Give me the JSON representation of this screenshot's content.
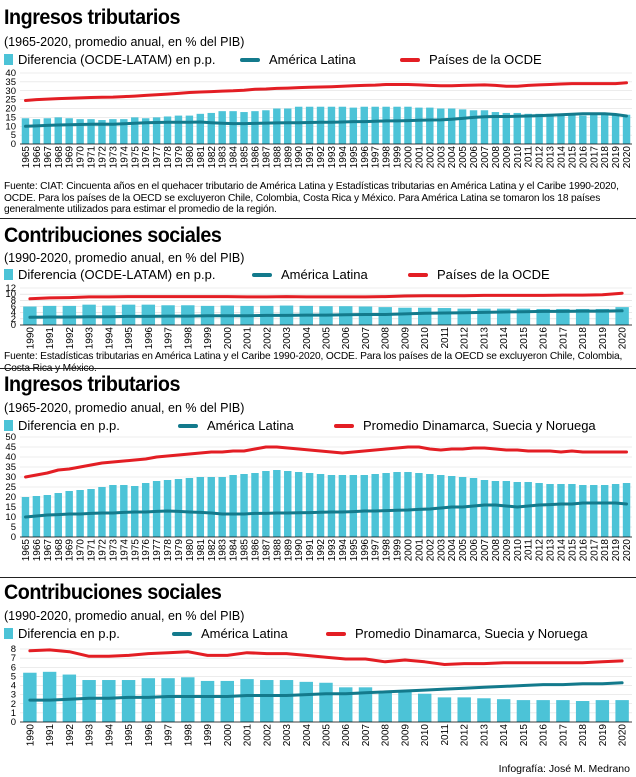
{
  "panels": [
    {
      "title": "Ingresos tributarios",
      "subtitle": "(1965-2020, promedio anual, en % del PIB)",
      "legend": [
        "Diferencia (OCDE-LATAM) en p.p.",
        "América Latina",
        "Países de la OCDE"
      ],
      "note": "Fuente: CIAT: Cincuenta años en el quehacer tributario de América Latina y Estadísticas tributarias en América Latina y el Caribe 1990-2020, OCDE. Para los países de la OECD se excluyeron Chile, Colombia, Costa Rica y México. Para América Latina se tomaron los 18 países generalmente utilizados para estimar el promedio de la región."
    },
    {
      "title": "Contribuciones sociales",
      "subtitle": "(1990-2020, promedio anual, en % del PIB)",
      "legend": [
        "Diferencia (OCDE-LATAM) en p.p.",
        "América Latina",
        "Países de la OCDE"
      ],
      "note": "Fuente: Estadísticas tributarias en América Latina y el Caribe 1990-2020, OCDE. Para los países de la OECD se excluyeron Chile, Colombia, Costa Rica y México."
    },
    {
      "title": "Ingresos tributarios",
      "subtitle": "(1965-2020, promedio anual, en % del PIB)",
      "legend": [
        "Diferencia en p.p.",
        "América Latina",
        "Promedio Dinamarca, Suecia y Noruega"
      ],
      "note": ""
    },
    {
      "title": "Contribuciones sociales",
      "subtitle": "(1990-2020, promedio anual, en % del PIB)",
      "legend": [
        "Diferencia en p.p.",
        "América Latina",
        "Promedio Dinamarca, Suecia y Noruega"
      ],
      "note": ""
    }
  ],
  "credit": "Infografía: José M. Medrano",
  "colors": {
    "bar": "#4cc3d7",
    "latam": "#137a8c",
    "ref": "#e31e24"
  },
  "chart_data": [
    {
      "type": "bar",
      "x_start": 1965,
      "x_end": 2020,
      "ylim": [
        0,
        40
      ],
      "yticks": [
        0,
        5,
        10,
        15,
        20,
        25,
        30,
        35,
        40
      ],
      "series": [
        {
          "name": "Diferencia (OCDE-LATAM) en p.p.",
          "kind": "bar",
          "values": [
            14.5,
            14,
            14.5,
            15,
            14.5,
            14,
            14,
            13.5,
            14,
            14,
            15,
            14.5,
            15,
            15.5,
            16,
            16,
            17,
            17.5,
            18.5,
            18.5,
            18,
            18.5,
            19,
            20,
            20,
            21,
            21,
            21,
            21,
            21,
            20.5,
            21,
            21,
            21,
            21,
            21,
            20.5,
            20.5,
            20,
            20,
            19.5,
            19,
            19,
            18,
            17.5,
            17.5,
            17,
            17,
            17,
            17,
            16.5,
            16,
            16.5,
            16.5,
            16.5,
            16.5
          ]
        },
        {
          "name": "América Latina",
          "kind": "line",
          "values": [
            10,
            10.2,
            10.5,
            10.7,
            10.8,
            11,
            11.1,
            11.2,
            11.1,
            11.4,
            11.7,
            12,
            12.1,
            12.2,
            12.3,
            12.3,
            12.4,
            12,
            11.7,
            11.5,
            11.5,
            11.6,
            11.8,
            11.9,
            12,
            12,
            12.1,
            12.2,
            12.3,
            12.4,
            12.6,
            12.6,
            12.8,
            13,
            13,
            13.2,
            13.4,
            13.5,
            13.6,
            14,
            14.4,
            15,
            15.3,
            15.5,
            15.5,
            15.6,
            15.8,
            16,
            16.2,
            16.5,
            16.8,
            17,
            17,
            17,
            16.6,
            15.8
          ]
        },
        {
          "name": "Países de la OCDE",
          "kind": "line",
          "values": [
            24.5,
            25,
            25.3,
            25.6,
            25.8,
            26,
            26.2,
            26.3,
            26.4,
            26.7,
            27,
            27.4,
            27.8,
            28.1,
            28.5,
            29,
            29.3,
            29.5,
            29.8,
            30,
            30.3,
            30.8,
            31,
            31.3,
            31.5,
            31.8,
            32,
            32.1,
            32.3,
            32.5,
            32.8,
            33,
            33.2,
            33.5,
            33.5,
            33.5,
            33.3,
            33,
            32.8,
            32.8,
            33,
            33.2,
            33.3,
            33,
            32.5,
            32.5,
            33,
            33.3,
            33.5,
            33.8,
            34,
            34,
            34,
            34,
            34,
            34.5
          ]
        }
      ]
    },
    {
      "type": "bar",
      "x_start": 1990,
      "x_end": 2020,
      "ylim": [
        0,
        12
      ],
      "yticks": [
        0,
        2,
        4,
        6,
        8,
        10,
        12
      ],
      "series": [
        {
          "name": "Diferencia (OCDE-LATAM) en p.p.",
          "kind": "bar",
          "values": [
            6,
            6.2,
            6.2,
            6.6,
            6.3,
            6.6,
            6.6,
            6.4,
            6.4,
            6.2,
            6.3,
            6.2,
            6.2,
            6.3,
            6.2,
            6.1,
            6.1,
            6,
            5.8,
            5.6,
            5.6,
            5.5,
            5.3,
            5.3,
            5.3,
            5.3,
            5.2,
            5.2,
            5.2,
            5.2,
            5.8
          ]
        },
        {
          "name": "América Latina",
          "kind": "line",
          "values": [
            2.5,
            2.6,
            2.6,
            2.7,
            2.7,
            2.8,
            2.8,
            2.9,
            2.9,
            3,
            3,
            3,
            3.1,
            3.1,
            3.2,
            3.2,
            3.3,
            3.4,
            3.4,
            3.6,
            3.8,
            3.9,
            4,
            4.1,
            4.2,
            4.3,
            4.4,
            4.4,
            4.5,
            4.5,
            4.6
          ]
        },
        {
          "name": "Países de la OCDE",
          "kind": "line",
          "values": [
            8.5,
            8.8,
            8.9,
            9.1,
            9.1,
            9.2,
            9.2,
            9.2,
            9.2,
            9.2,
            9.2,
            9.1,
            9.1,
            9.2,
            9.1,
            9.1,
            9.1,
            9.1,
            9.2,
            9.4,
            9.5,
            9.5,
            9.5,
            9.6,
            9.6,
            9.6,
            9.6,
            9.7,
            9.7,
            9.8,
            10.3
          ]
        }
      ]
    },
    {
      "type": "bar",
      "x_start": 1965,
      "x_end": 2020,
      "ylim": [
        0,
        50
      ],
      "yticks": [
        0,
        5,
        10,
        15,
        20,
        25,
        30,
        35,
        40,
        45,
        50
      ],
      "series": [
        {
          "name": "Diferencia en p.p.",
          "kind": "bar",
          "values": [
            20,
            20.5,
            21,
            22,
            23,
            23.5,
            24,
            25,
            26,
            26,
            25.5,
            27,
            28,
            28.5,
            29,
            29.5,
            30,
            30,
            30,
            31,
            31.5,
            32,
            33,
            33.5,
            33,
            32.5,
            32,
            31.5,
            31,
            31,
            31,
            31,
            31.5,
            32,
            32.5,
            32.5,
            32,
            31.5,
            31,
            30.5,
            30,
            29.5,
            28.5,
            28,
            28,
            27.5,
            27.5,
            27,
            26.5,
            26.5,
            26.5,
            26,
            26,
            26,
            26.5,
            27
          ]
        },
        {
          "name": "América Latina",
          "kind": "line",
          "values": [
            10,
            10.5,
            11,
            11.2,
            11.5,
            11.5,
            11.8,
            12,
            12,
            12.3,
            12.5,
            12.5,
            12.8,
            13,
            12.8,
            12.5,
            12.3,
            12,
            11.5,
            11.5,
            11.5,
            11.8,
            11.8,
            12,
            12,
            12.1,
            12.2,
            12.4,
            12.5,
            12.5,
            12.7,
            13,
            13,
            13.2,
            13.4,
            13.5,
            13.8,
            14,
            14.5,
            15,
            15,
            15.5,
            16,
            16,
            15.5,
            15,
            15.5,
            16,
            16.2,
            16.5,
            16.5,
            17,
            17,
            17,
            17,
            16.5
          ]
        },
        {
          "name": "Promedio Dinamarca, Suecia y Noruega",
          "kind": "line",
          "values": [
            30,
            31,
            32,
            33.5,
            34,
            35,
            36,
            37,
            37.5,
            38,
            38.5,
            39,
            40,
            40.5,
            41,
            41.5,
            42,
            42.5,
            42.5,
            43,
            43,
            44,
            45,
            45,
            44.5,
            44,
            43.5,
            43,
            42.5,
            42,
            42.5,
            43,
            43.5,
            44,
            44.5,
            45,
            45,
            44,
            43.5,
            44,
            44,
            44.5,
            44.5,
            44,
            43.5,
            43.5,
            43,
            43,
            43,
            42.5,
            43,
            42.5,
            42.5,
            42.5,
            42.5,
            42.5
          ]
        }
      ]
    },
    {
      "type": "bar",
      "x_start": 1990,
      "x_end": 2020,
      "ylim": [
        0,
        8
      ],
      "yticks": [
        0,
        1,
        2,
        3,
        4,
        5,
        6,
        7,
        8
      ],
      "series": [
        {
          "name": "Diferencia en p.p.",
          "kind": "bar",
          "values": [
            5.4,
            5.5,
            5.2,
            4.6,
            4.6,
            4.6,
            4.8,
            4.8,
            4.9,
            4.5,
            4.5,
            4.7,
            4.6,
            4.6,
            4.4,
            4.3,
            3.8,
            3.8,
            3.3,
            3.4,
            3.1,
            2.7,
            2.7,
            2.6,
            2.5,
            2.4,
            2.4,
            2.4,
            2.3,
            2.4,
            2.4
          ]
        },
        {
          "name": "América Latina",
          "kind": "line",
          "values": [
            2.4,
            2.4,
            2.5,
            2.6,
            2.6,
            2.7,
            2.7,
            2.8,
            2.8,
            2.8,
            2.8,
            2.9,
            2.9,
            2.9,
            3,
            3.1,
            3.1,
            3.2,
            3.3,
            3.4,
            3.5,
            3.6,
            3.7,
            3.8,
            3.9,
            4,
            4.1,
            4.1,
            4.2,
            4.2,
            4.3
          ]
        },
        {
          "name": "Promedio Dinamarca, Suecia y Noruega",
          "kind": "line",
          "values": [
            7.8,
            7.9,
            7.7,
            7.2,
            7.2,
            7.3,
            7.5,
            7.6,
            7.7,
            7.3,
            7.3,
            7.6,
            7.5,
            7.5,
            7.3,
            7.1,
            6.9,
            6.9,
            6.6,
            6.8,
            6.6,
            6.3,
            6.4,
            6.4,
            6.5,
            6.5,
            6.5,
            6.5,
            6.5,
            6.6,
            6.7
          ]
        }
      ]
    }
  ]
}
